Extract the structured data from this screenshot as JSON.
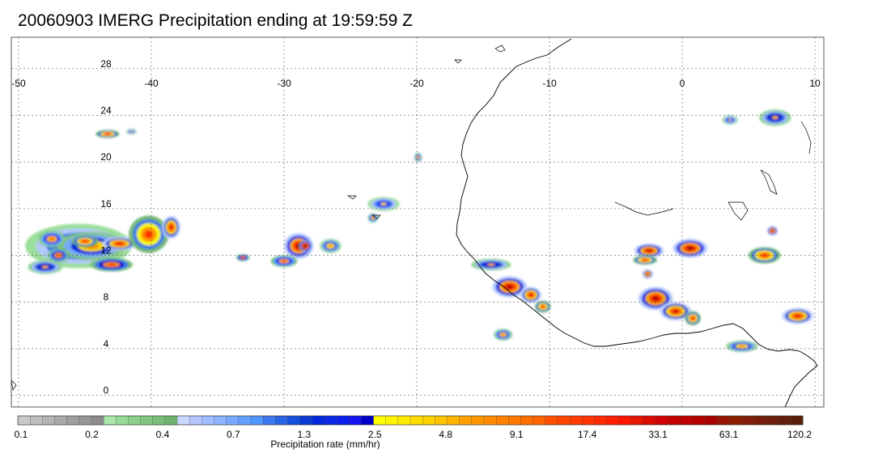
{
  "title": "20060903 IMERG Precipitation ending at 19:59:59 Z",
  "map": {
    "lon_range": [
      -50,
      10
    ],
    "lat_range": [
      -1,
      30
    ],
    "lon_ticks": [
      "-50",
      "-40",
      "-30",
      "-20",
      "-10",
      "0",
      "10"
    ],
    "lon_tick_values": [
      -50,
      -40,
      -30,
      -20,
      -10,
      0,
      10
    ],
    "lat_ticks": [
      "28",
      "24",
      "20",
      "16",
      "12",
      "8",
      "4",
      "0"
    ],
    "lat_tick_values": [
      28,
      24,
      20,
      16,
      12,
      8,
      4,
      0
    ],
    "grid": true,
    "coastline_color": "#000000",
    "precip_cells": [
      {
        "lon": -45.5,
        "lat": 12.8,
        "rx": 4.0,
        "ry": 1.9,
        "level": 0.5
      },
      {
        "lon": -44.5,
        "lat": 12.8,
        "rx": 2.6,
        "ry": 1.2,
        "level": 0.62
      },
      {
        "lon": -45.0,
        "lat": 13.2,
        "rx": 1.0,
        "ry": 0.5,
        "level": 0.78
      },
      {
        "lon": -43.0,
        "lat": 11.2,
        "rx": 1.6,
        "ry": 0.6,
        "level": 0.72
      },
      {
        "lon": -42.4,
        "lat": 13.0,
        "rx": 1.3,
        "ry": 0.6,
        "level": 0.8
      },
      {
        "lon": -40.2,
        "lat": 13.8,
        "rx": 1.5,
        "ry": 1.6,
        "level": 0.74
      },
      {
        "lon": -38.5,
        "lat": 14.4,
        "rx": 0.7,
        "ry": 1.0,
        "level": 0.8
      },
      {
        "lon": -48.0,
        "lat": 11.0,
        "rx": 1.3,
        "ry": 0.6,
        "level": 0.55
      },
      {
        "lon": -47.0,
        "lat": 12.0,
        "rx": 0.8,
        "ry": 0.6,
        "level": 0.7
      },
      {
        "lon": -47.5,
        "lat": 13.4,
        "rx": 1.0,
        "ry": 0.7,
        "level": 0.66
      },
      {
        "lon": -43.3,
        "lat": 22.4,
        "rx": 0.9,
        "ry": 0.35,
        "level": 0.78
      },
      {
        "lon": -41.5,
        "lat": 22.6,
        "rx": 0.4,
        "ry": 0.25,
        "level": 0.5
      },
      {
        "lon": -28.9,
        "lat": 12.8,
        "rx": 1.1,
        "ry": 1.1,
        "level": 0.9
      },
      {
        "lon": -28.4,
        "lat": 12.8,
        "rx": 0.5,
        "ry": 0.5,
        "level": 1.0
      },
      {
        "lon": -30.0,
        "lat": 11.5,
        "rx": 1.0,
        "ry": 0.5,
        "level": 0.68
      },
      {
        "lon": -26.5,
        "lat": 12.8,
        "rx": 0.8,
        "ry": 0.6,
        "level": 0.6
      },
      {
        "lon": -33.1,
        "lat": 11.8,
        "rx": 0.5,
        "ry": 0.3,
        "level": 0.72
      },
      {
        "lon": -22.5,
        "lat": 16.4,
        "rx": 1.2,
        "ry": 0.6,
        "level": 0.5
      },
      {
        "lon": -23.3,
        "lat": 15.2,
        "rx": 0.4,
        "ry": 0.4,
        "level": 0.6
      },
      {
        "lon": -19.9,
        "lat": 20.4,
        "rx": 0.3,
        "ry": 0.4,
        "level": 0.58
      },
      {
        "lon": -13.0,
        "lat": 9.3,
        "rx": 1.3,
        "ry": 0.9,
        "level": 0.88
      },
      {
        "lon": -11.4,
        "lat": 8.6,
        "rx": 0.8,
        "ry": 0.7,
        "level": 0.8
      },
      {
        "lon": -10.5,
        "lat": 7.6,
        "rx": 0.6,
        "ry": 0.5,
        "level": 0.76
      },
      {
        "lon": -14.4,
        "lat": 11.2,
        "rx": 1.5,
        "ry": 0.5,
        "level": 0.55
      },
      {
        "lon": -13.5,
        "lat": 5.2,
        "rx": 0.7,
        "ry": 0.5,
        "level": 0.62
      },
      {
        "lon": -2.5,
        "lat": 12.4,
        "rx": 1.1,
        "ry": 0.6,
        "level": 0.86
      },
      {
        "lon": 0.6,
        "lat": 12.6,
        "rx": 1.3,
        "ry": 0.8,
        "level": 0.9
      },
      {
        "lon": -2.6,
        "lat": 10.4,
        "rx": 0.4,
        "ry": 0.4,
        "level": 0.82
      },
      {
        "lon": -2.0,
        "lat": 8.3,
        "rx": 1.3,
        "ry": 1.0,
        "level": 0.88
      },
      {
        "lon": -0.5,
        "lat": 7.2,
        "rx": 1.2,
        "ry": 0.8,
        "level": 0.82
      },
      {
        "lon": 0.8,
        "lat": 6.6,
        "rx": 0.6,
        "ry": 0.6,
        "level": 0.78
      },
      {
        "lon": 4.5,
        "lat": 4.2,
        "rx": 1.2,
        "ry": 0.5,
        "level": 0.6
      },
      {
        "lon": 6.8,
        "lat": 14.1,
        "rx": 0.4,
        "ry": 0.4,
        "level": 0.86
      },
      {
        "lon": 6.2,
        "lat": 12.0,
        "rx": 1.2,
        "ry": 0.7,
        "level": 0.76
      },
      {
        "lon": 8.7,
        "lat": 6.8,
        "rx": 1.2,
        "ry": 0.7,
        "level": 0.8
      },
      {
        "lon": 7.0,
        "lat": 23.8,
        "rx": 1.2,
        "ry": 0.7,
        "level": 0.55
      },
      {
        "lon": 3.6,
        "lat": 23.6,
        "rx": 0.6,
        "ry": 0.4,
        "level": 0.5
      },
      {
        "lon": -2.8,
        "lat": 11.6,
        "rx": 0.9,
        "ry": 0.4,
        "level": 0.76
      }
    ]
  },
  "colorbar": {
    "label": "Precipitation rate (mm/hr)",
    "tick_labels": [
      "0.1",
      "0.2",
      "0.4",
      "0.7",
      "1.3",
      "2.5",
      "4.8",
      "9.1",
      "17.4",
      "33.1",
      "63.1",
      "120.2"
    ],
    "colors": [
      "#c8c8c8",
      "#bebebe",
      "#b4b4b4",
      "#aaaaaa",
      "#a0a0a0",
      "#969696",
      "#8c8c8c",
      "#aae6aa",
      "#96dc96",
      "#8cd28c",
      "#82c882",
      "#78be78",
      "#6eb46e",
      "#c8d7ff",
      "#b4c8ff",
      "#a0beff",
      "#8cb4ff",
      "#78aaff",
      "#64a0ff",
      "#5096ff",
      "#3c78f0",
      "#2864e6",
      "#1450dc",
      "#0a3cd2",
      "#0028dc",
      "#0a28e6",
      "#0a1ef0",
      "#1414f5",
      "#0000c8",
      "#ffff00",
      "#fff500",
      "#ffeb00",
      "#ffdc00",
      "#ffd200",
      "#ffc300",
      "#ffb400",
      "#ffa000",
      "#ff9600",
      "#ff8c00",
      "#ff8200",
      "#ff7800",
      "#ff6e00",
      "#ff6400",
      "#ff5000",
      "#ff4600",
      "#ff3c00",
      "#ff3200",
      "#ff2800",
      "#ff1e00",
      "#ff1400",
      "#e61400",
      "#dc0a00",
      "#d20000",
      "#c80000",
      "#be0000",
      "#b40000",
      "#aa0000",
      "#961400",
      "#8c1e00",
      "#821e0a",
      "#781e0a",
      "#6e1e0a",
      "#641e0a",
      "#5a1e0a"
    ]
  }
}
